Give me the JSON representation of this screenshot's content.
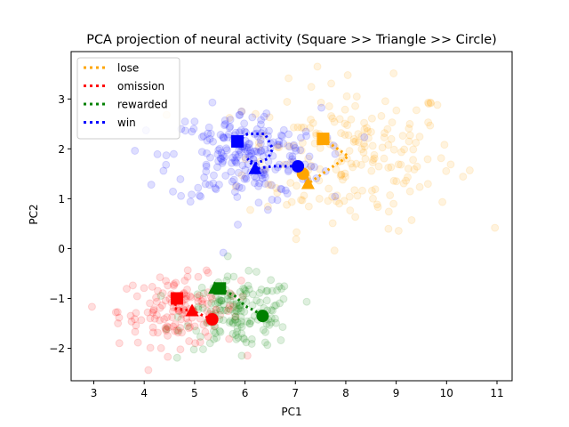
{
  "chart_data": {
    "type": "scatter",
    "title": "PCA projection of neural activity (Square >> Triangle >> Circle)",
    "xlabel": "PC1",
    "ylabel": "PC2",
    "xlim": [
      2.55,
      11.3
    ],
    "ylim": [
      -2.65,
      3.95
    ],
    "xticks": [
      3,
      4,
      5,
      6,
      7,
      8,
      9,
      10,
      11
    ],
    "yticks": [
      -2,
      -1,
      0,
      1,
      2,
      3
    ],
    "legend_position": "top-left",
    "grid": false,
    "series": [
      {
        "name": "lose",
        "color": "#ffa500",
        "cloud": {
          "cx": 8.1,
          "cy": 1.85,
          "sx": 1.05,
          "sy": 0.72,
          "n": 210
        },
        "trajectory": [
          [
            7.55,
            2.2
          ],
          [
            8.05,
            1.85
          ],
          [
            7.75,
            1.65
          ],
          [
            7.25,
            1.3
          ],
          [
            7.15,
            1.5
          ]
        ],
        "markers": {
          "square": [
            7.55,
            2.2
          ],
          "triangle": [
            7.25,
            1.3
          ],
          "circle": [
            7.15,
            1.5
          ]
        }
      },
      {
        "name": "omission",
        "color": "#ff0000",
        "cloud": {
          "cx": 4.7,
          "cy": -1.25,
          "sx": 0.6,
          "sy": 0.35,
          "n": 150
        },
        "trajectory": [
          [
            4.65,
            -1.0
          ],
          [
            4.6,
            -1.2
          ],
          [
            4.95,
            -1.25
          ],
          [
            5.35,
            -1.42
          ]
        ],
        "markers": {
          "square": [
            4.65,
            -1.0
          ],
          "triangle": [
            4.95,
            -1.25
          ],
          "circle": [
            5.35,
            -1.42
          ]
        }
      },
      {
        "name": "rewarded",
        "color": "#008000",
        "cloud": {
          "cx": 5.9,
          "cy": -1.3,
          "sx": 0.55,
          "sy": 0.35,
          "n": 160
        },
        "trajectory": [
          [
            5.5,
            -0.8
          ],
          [
            5.8,
            -0.95
          ],
          [
            6.0,
            -1.15
          ],
          [
            6.2,
            -1.25
          ],
          [
            6.35,
            -1.35
          ]
        ],
        "markers": {
          "square": [
            5.5,
            -0.8
          ],
          "triangle": [
            5.4,
            -0.8
          ],
          "circle": [
            6.35,
            -1.35
          ]
        }
      },
      {
        "name": "win",
        "color": "#0000ff",
        "cloud": {
          "cx": 6.0,
          "cy": 1.85,
          "sx": 0.75,
          "sy": 0.48,
          "n": 230
        },
        "trajectory": [
          [
            5.85,
            2.15
          ],
          [
            6.05,
            2.3
          ],
          [
            6.4,
            2.3
          ],
          [
            6.55,
            2.0
          ],
          [
            6.45,
            1.8
          ],
          [
            6.2,
            1.7
          ],
          [
            6.05,
            1.8
          ],
          [
            6.2,
            1.6
          ],
          [
            6.55,
            1.65
          ],
          [
            7.05,
            1.65
          ]
        ],
        "markers": {
          "square": [
            5.85,
            2.15
          ],
          "triangle": [
            6.2,
            1.6
          ],
          "circle": [
            7.05,
            1.65
          ]
        }
      }
    ]
  }
}
